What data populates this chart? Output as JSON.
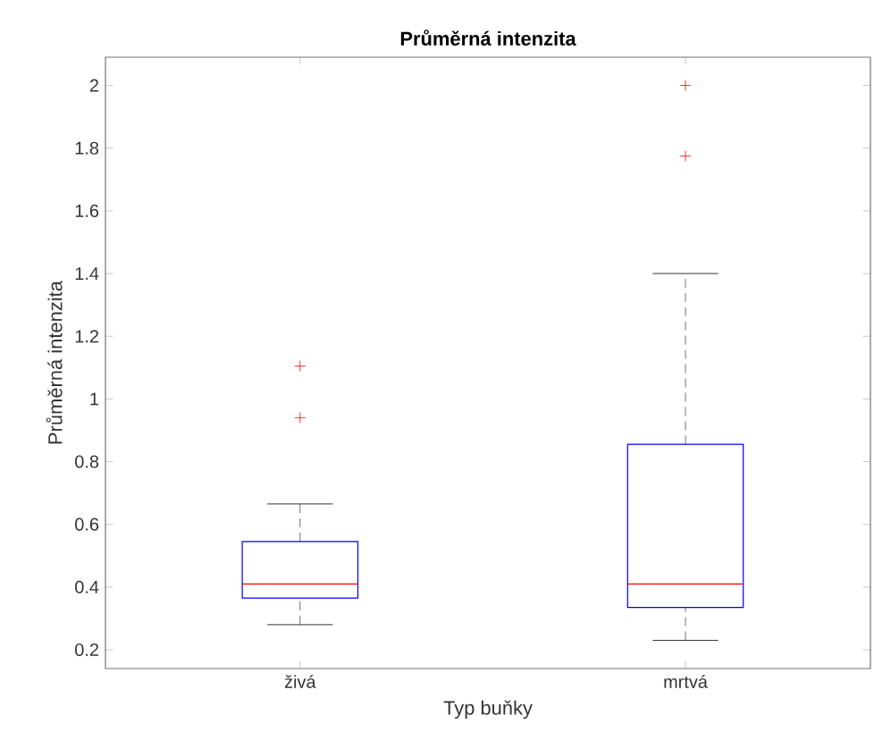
{
  "chart_data": {
    "type": "box",
    "title": "Průměrná intenzita",
    "xlabel": "Typ buňky",
    "ylabel": "Průměrná intenzita",
    "categories": [
      "živá",
      "mrtvá"
    ],
    "ylim": [
      0.14,
      2.09
    ],
    "yticks": [
      0.2,
      0.4,
      0.6,
      0.8,
      1,
      1.2,
      1.4,
      1.6,
      1.8,
      2
    ],
    "series": [
      {
        "color": "#0000ff",
        "boxes": [
          {
            "low": 0.28,
            "q1": 0.365,
            "median": 0.41,
            "q3": 0.545,
            "high": 0.665,
            "outliers": [
              0.94,
              1.105
            ]
          },
          {
            "low": 0.23,
            "q1": 0.335,
            "median": 0.41,
            "q3": 0.855,
            "high": 1.4,
            "outliers": [
              1.775,
              2.0
            ]
          }
        ]
      }
    ]
  }
}
